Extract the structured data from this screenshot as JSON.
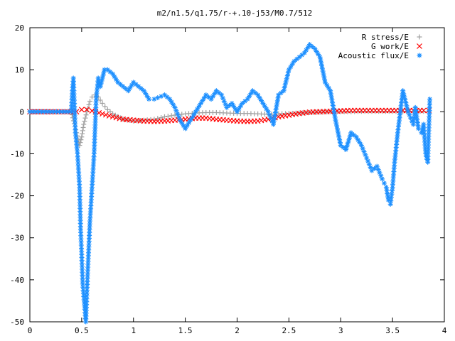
{
  "chart_data": {
    "type": "scatter",
    "title": "m2/n1.5/q1.75/r-+.10-j53/M0.7/512",
    "xlabel": "",
    "ylabel": "",
    "xlim": [
      0,
      4
    ],
    "ylim": [
      -50,
      20
    ],
    "x_ticks": [
      "0",
      "0.5",
      "1",
      "1.5",
      "2",
      "2.5",
      "3",
      "3.5",
      "4"
    ],
    "y_ticks": [
      "20",
      "10",
      "0",
      "-10",
      "-20",
      "-30",
      "-40",
      "-50"
    ],
    "grid": false,
    "legend_position": "top-right",
    "series": [
      {
        "name": "R stress/E",
        "marker": "plus",
        "color": "#a0a0a0",
        "x": [
          0.0,
          0.4,
          0.45,
          0.48,
          0.5,
          0.52,
          0.55,
          0.58,
          0.6,
          0.63,
          0.66,
          0.7,
          0.75,
          0.8,
          0.9,
          1.0,
          1.1,
          1.2,
          1.3,
          1.4,
          1.5,
          1.6,
          1.7,
          1.8,
          1.9,
          2.0,
          2.1,
          2.2,
          2.3,
          2.4,
          2.5,
          2.6,
          2.7,
          2.8,
          2.9,
          3.0,
          3.1,
          3.2,
          3.3,
          3.4,
          3.5,
          3.6,
          3.7,
          3.8,
          3.85
        ],
        "y": [
          0,
          0,
          -5,
          -8,
          -6,
          -3,
          0,
          2.5,
          3.5,
          4,
          3.5,
          2,
          0.5,
          -0.5,
          -1.8,
          -2.2,
          -2.0,
          -1.8,
          -1.2,
          -0.8,
          -0.5,
          -0.3,
          -0.2,
          -0.2,
          -0.3,
          -0.4,
          -0.4,
          -0.5,
          -0.6,
          -0.5,
          -0.4,
          -0.3,
          -0.2,
          -0.1,
          0,
          0,
          0,
          0.1,
          0.1,
          0.1,
          0.1,
          0.1,
          0.1,
          0.1,
          0.1
        ]
      },
      {
        "name": "G work/E",
        "marker": "cross",
        "color": "#ff0000",
        "x": [
          0.0,
          0.45,
          0.5,
          0.55,
          0.6,
          0.7,
          0.8,
          0.9,
          1.0,
          1.1,
          1.2,
          1.3,
          1.4,
          1.5,
          1.6,
          1.7,
          1.8,
          1.9,
          2.0,
          2.1,
          2.2,
          2.3,
          2.4,
          2.5,
          2.6,
          2.7,
          2.8,
          2.9,
          3.0,
          3.1,
          3.2,
          3.3,
          3.4,
          3.5,
          3.6,
          3.7,
          3.8,
          3.85
        ],
        "y": [
          0,
          0,
          0.5,
          0.5,
          0.2,
          -0.5,
          -1.2,
          -1.8,
          -2.0,
          -2.2,
          -2.3,
          -2.2,
          -2.0,
          -1.8,
          -1.5,
          -1.5,
          -1.8,
          -2.0,
          -2.2,
          -2.3,
          -2.2,
          -1.8,
          -1.2,
          -0.8,
          -0.4,
          -0.1,
          0,
          0.1,
          0.2,
          0.3,
          0.3,
          0.3,
          0.3,
          0.3,
          0.3,
          0.3,
          0.3,
          0.3
        ]
      },
      {
        "name": "Acoustic flux/E",
        "marker": "asterisk",
        "color": "#1e90ff",
        "x": [
          0.0,
          0.4,
          0.41,
          0.42,
          0.43,
          0.44,
          0.46,
          0.48,
          0.49,
          0.5,
          0.51,
          0.52,
          0.53,
          0.54,
          0.56,
          0.58,
          0.6,
          0.62,
          0.64,
          0.66,
          0.68,
          0.72,
          0.75,
          0.8,
          0.85,
          0.9,
          0.95,
          1.0,
          1.05,
          1.1,
          1.15,
          1.2,
          1.3,
          1.35,
          1.4,
          1.45,
          1.5,
          1.55,
          1.6,
          1.65,
          1.7,
          1.75,
          1.8,
          1.85,
          1.9,
          1.95,
          2.0,
          2.05,
          2.1,
          2.15,
          2.2,
          2.25,
          2.3,
          2.35,
          2.4,
          2.45,
          2.5,
          2.55,
          2.6,
          2.65,
          2.7,
          2.75,
          2.8,
          2.85,
          2.9,
          2.95,
          3.0,
          3.05,
          3.1,
          3.15,
          3.2,
          3.25,
          3.3,
          3.35,
          3.4,
          3.42,
          3.44,
          3.46,
          3.48,
          3.5,
          3.52,
          3.55,
          3.6,
          3.65,
          3.7,
          3.72,
          3.75,
          3.78,
          3.8,
          3.82,
          3.84,
          3.86
        ],
        "y": [
          0,
          0,
          5,
          8,
          2,
          -5,
          -10,
          -18,
          -28,
          -34,
          -41,
          -44,
          -47,
          -50,
          -37,
          -26,
          -18,
          -10,
          3,
          8,
          6,
          10,
          10,
          9,
          7,
          6,
          5,
          7,
          6,
          5,
          3,
          3,
          4,
          3,
          1,
          -2,
          -4,
          -2,
          0,
          2,
          4,
          3,
          5,
          4,
          1,
          2,
          0,
          2,
          3,
          5,
          4,
          2,
          0,
          -3,
          4,
          5,
          10,
          12,
          13,
          14,
          16,
          15,
          13,
          7,
          5,
          -2,
          -8,
          -9,
          -5,
          -6,
          -8,
          -11,
          -14,
          -13,
          -16,
          -17,
          -18,
          -21,
          -22,
          -18,
          -12,
          -5,
          5,
          0,
          -3,
          1,
          -4,
          -5,
          -3,
          -10,
          -12,
          3
        ]
      }
    ]
  }
}
